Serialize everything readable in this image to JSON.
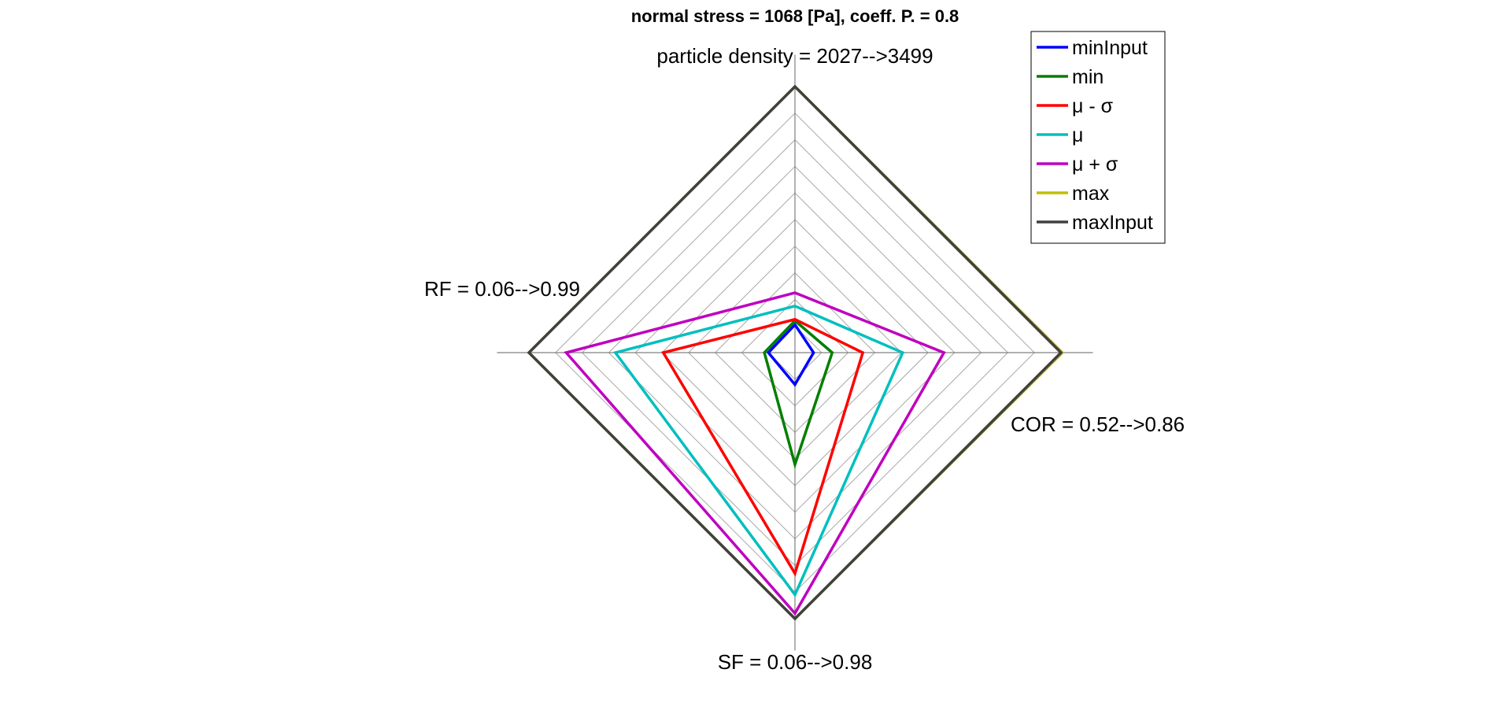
{
  "chart_data": {
    "type": "radar",
    "title": "normal stress = 1068 [Pa], coeff. P. = 0.8",
    "axes": [
      {
        "name": "particle density",
        "label": "particle density = 2027-->3499",
        "min": 2027,
        "max": 3499
      },
      {
        "name": "COR",
        "label": "COR = 0.52-->0.86",
        "min": 0.52,
        "max": 0.86
      },
      {
        "name": "SF",
        "label": "SF = 0.06-->0.98",
        "min": 0.06,
        "max": 0.98
      },
      {
        "name": "RF",
        "label": "RF = 0.06-->0.99",
        "min": 0.06,
        "max": 0.99
      }
    ],
    "grid": {
      "rings": 10,
      "on": true
    },
    "legend_position": "top-right",
    "series": [
      {
        "name": "minInput",
        "color": "#0000ff",
        "values": [
          0.105,
          0.07,
          0.12,
          0.1
        ]
      },
      {
        "name": "min",
        "color": "#007f00",
        "values": [
          0.12,
          0.14,
          0.42,
          0.115
        ]
      },
      {
        "name": "μ - σ",
        "color": "#ff0000",
        "values": [
          0.125,
          0.255,
          0.83,
          0.495
        ]
      },
      {
        "name": "μ",
        "color": "#00bfbf",
        "values": [
          0.175,
          0.405,
          0.91,
          0.675
        ]
      },
      {
        "name": "μ + σ",
        "color": "#bf00bf",
        "values": [
          0.225,
          0.56,
          0.98,
          0.86
        ]
      },
      {
        "name": "max",
        "color": "#bfbf00",
        "values": [
          1.0,
          1.005,
          1.0,
          1.0
        ]
      },
      {
        "name": "maxInput",
        "color": "#404040",
        "values": [
          1.0,
          1.0,
          1.0,
          1.0
        ]
      }
    ]
  }
}
